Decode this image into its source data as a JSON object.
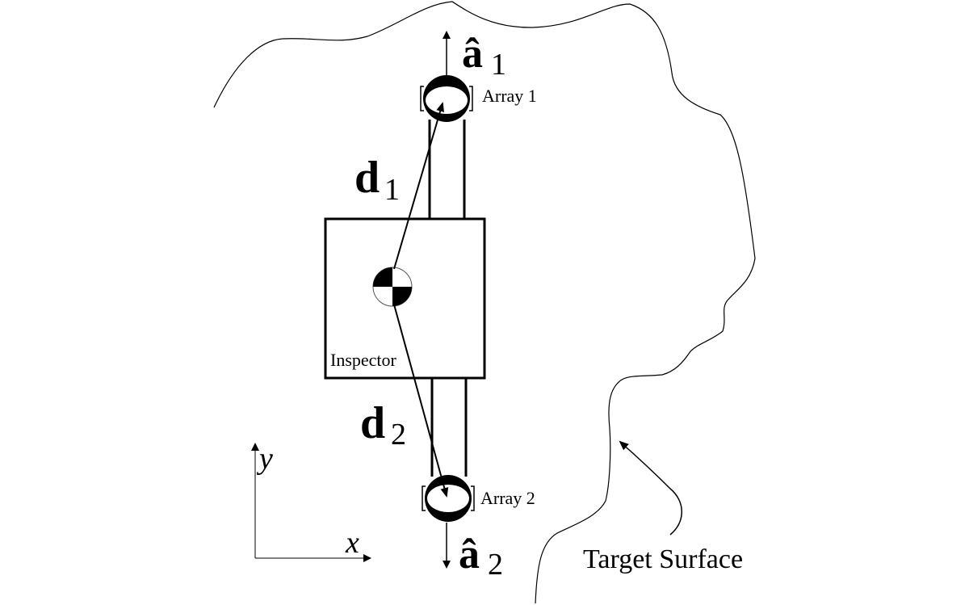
{
  "labels": {
    "a1": "â",
    "a1_sub": "1",
    "a2": "â",
    "a2_sub": "2",
    "d1": "d",
    "d1_sub": "1",
    "d2": "d",
    "d2_sub": "2",
    "array1": "Array 1",
    "array2": "Array 2",
    "inspector": "Inspector",
    "target": "Target Surface",
    "axis_x": "x",
    "axis_y": "y"
  },
  "colors": {
    "stroke": "#000000",
    "background": "#ffffff"
  }
}
